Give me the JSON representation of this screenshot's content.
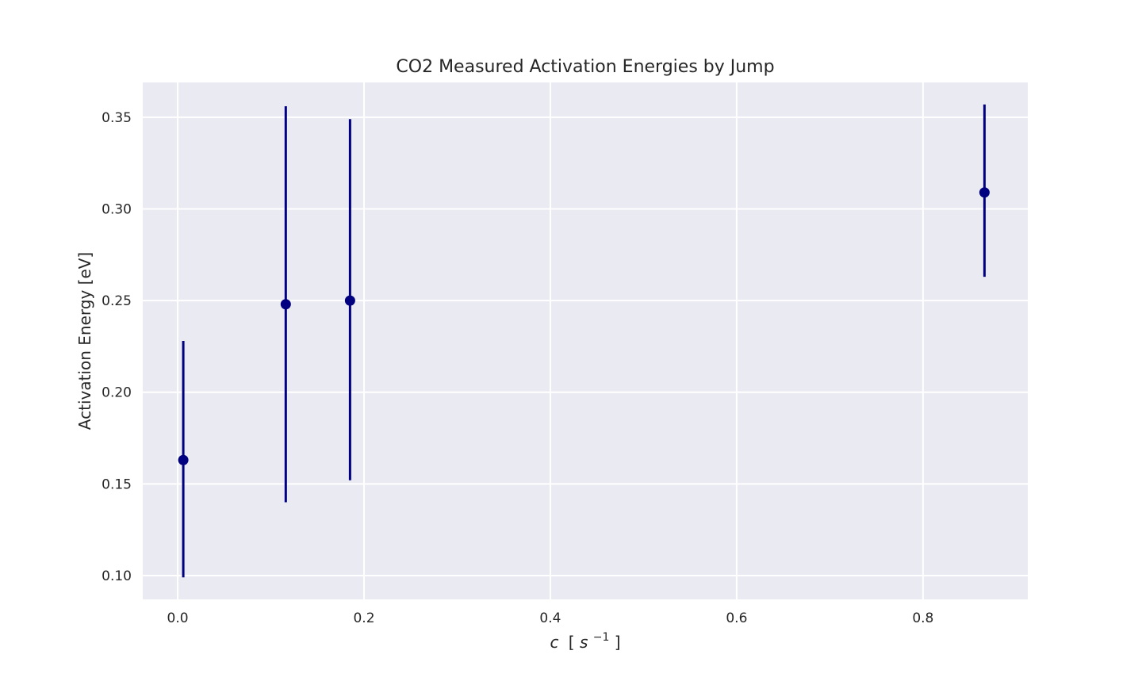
{
  "chart_data": {
    "type": "scatter",
    "title": "CO2 Measured Activation Energies by Jump",
    "xlabel": {
      "c": "c",
      "open": "[",
      "s": "s",
      "sup": "−1",
      "close": "]"
    },
    "ylabel": "Activation Energy [eV]",
    "xlim": [
      -0.0375,
      0.9125
    ],
    "ylim": [
      0.087,
      0.369
    ],
    "xticks": [
      0.0,
      0.2,
      0.4,
      0.6,
      0.8
    ],
    "xtick_labels": [
      "0.0",
      "0.2",
      "0.4",
      "0.6",
      "0.8"
    ],
    "yticks": [
      0.1,
      0.15,
      0.2,
      0.25,
      0.3,
      0.35
    ],
    "ytick_labels": [
      "0.10",
      "0.15",
      "0.20",
      "0.25",
      "0.30",
      "0.35"
    ],
    "grid": true,
    "colors": {
      "background": "#EAEAF2",
      "grid": "#FFFFFF",
      "marker": "#000080"
    },
    "points": [
      {
        "x": 0.006,
        "y": 0.163,
        "ymin": 0.099,
        "ymax": 0.228
      },
      {
        "x": 0.116,
        "y": 0.248,
        "ymin": 0.14,
        "ymax": 0.356
      },
      {
        "x": 0.185,
        "y": 0.25,
        "ymin": 0.152,
        "ymax": 0.349
      },
      {
        "x": 0.866,
        "y": 0.309,
        "ymin": 0.263,
        "ymax": 0.357
      }
    ]
  }
}
